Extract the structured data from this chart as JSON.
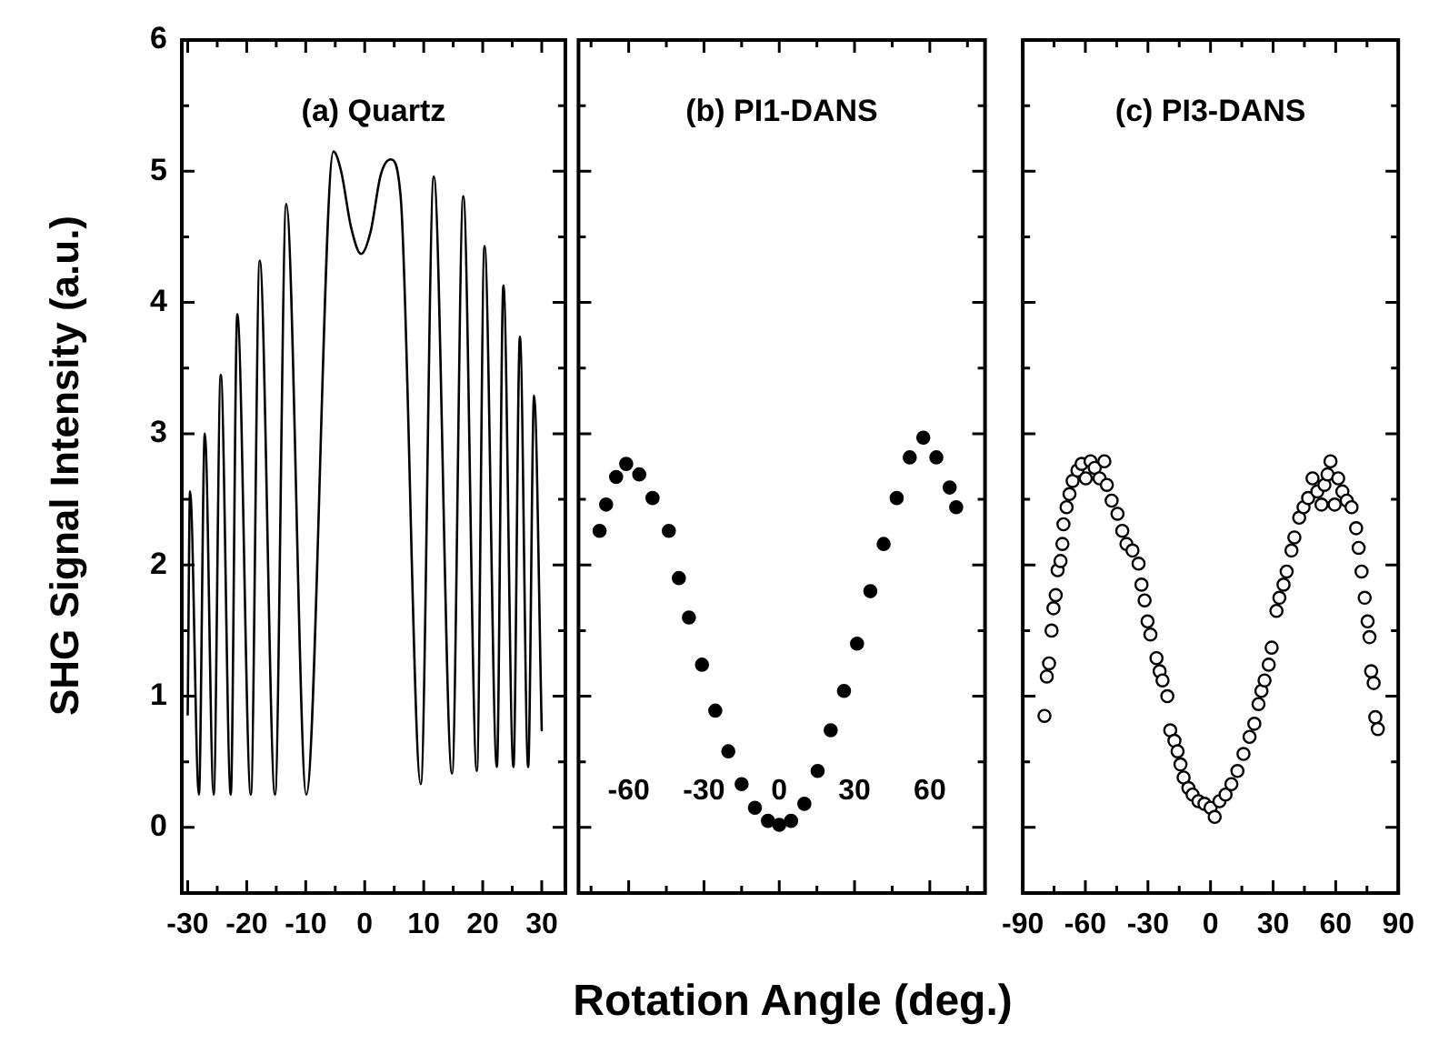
{
  "chart_data": [
    {
      "type": "line",
      "title": "(a) Quartz",
      "ylabel": "SHG Signal Intensity (a.u.)",
      "color": "#000000",
      "marker": "none",
      "x": [
        -30,
        -29.6,
        -28.1,
        -27.1,
        -25.6,
        -24.4,
        -22.7,
        -21.6,
        -19.3,
        -17.8,
        -15.2,
        -13.3,
        -9.9,
        -5.3,
        -4.0,
        -2.3,
        -0.6,
        1.0,
        2.7,
        4.4,
        6.1,
        9.5,
        11.7,
        14.8,
        16.7,
        19.0,
        20.3,
        22.4,
        23.5,
        25.2,
        26.3,
        27.7,
        28.7,
        30.0
      ],
      "values": [
        0.86,
        2.56,
        0.25,
        3.0,
        0.25,
        3.45,
        0.25,
        3.91,
        0.25,
        4.32,
        0.25,
        4.75,
        0.25,
        5.15,
        5.0,
        4.57,
        4.37,
        4.54,
        4.97,
        5.09,
        4.8,
        0.33,
        4.96,
        0.41,
        4.81,
        0.43,
        4.43,
        0.46,
        4.13,
        0.46,
        3.74,
        0.46,
        3.29,
        0.74
      ],
      "xlim": [
        -31,
        34
      ],
      "ylim": [
        -0.5,
        6
      ],
      "xticks": [
        -30,
        {
          "value": -25,
          "label": null
        },
        -20,
        {
          "value": -15,
          "label": null
        },
        -10,
        {
          "value": -5,
          "label": null
        },
        0,
        {
          "value": 5,
          "label": null
        },
        10,
        {
          "value": 15,
          "label": null
        },
        20,
        {
          "value": 25,
          "label": null
        },
        30
      ],
      "yticks": [
        0,
        {
          "value": 0.5,
          "label": null
        },
        1,
        {
          "value": 1.5,
          "label": null
        },
        2,
        {
          "value": 2.5,
          "label": null
        },
        3,
        {
          "value": 3.5,
          "label": null
        },
        4,
        {
          "value": 4.5,
          "label": null
        },
        5,
        {
          "value": 5.5,
          "label": null
        },
        6
      ]
    },
    {
      "type": "scatter",
      "title": "(b) PI1-DANS",
      "xlabel": "Rotation Angle (deg.)",
      "color": "#000000",
      "marker": "circle",
      "tick_labels": "x",
      "x": [
        -71.6,
        -69,
        -65,
        -61,
        -55.8,
        -50.5,
        -44,
        -40,
        -36,
        -30.8,
        -25.5,
        -20.3,
        -15,
        -9.7,
        -4.5,
        0,
        4.7,
        10,
        15.3,
        20.5,
        25.8,
        31,
        36.3,
        41.6,
        46.8,
        52,
        57.4,
        62.6,
        67.9,
        70.5
      ],
      "values": [
        2.26,
        2.46,
        2.67,
        2.77,
        2.69,
        2.51,
        2.26,
        1.9,
        1.6,
        1.24,
        0.89,
        0.58,
        0.33,
        0.15,
        0.05,
        0.02,
        0.05,
        0.18,
        0.43,
        0.74,
        1.04,
        1.4,
        1.8,
        2.16,
        2.51,
        2.82,
        2.97,
        2.82,
        2.59,
        2.44
      ],
      "xlim": [
        -80,
        82
      ],
      "ylim": [
        -0.5,
        6
      ],
      "xticks": [
        {
          "value": -75,
          "label": null
        },
        -60,
        {
          "value": -45,
          "label": null
        },
        -30,
        {
          "value": -15,
          "label": null
        },
        0,
        {
          "value": 15,
          "label": null
        },
        30,
        {
          "value": 45,
          "label": null
        },
        60,
        {
          "value": 75,
          "label": null
        }
      ],
      "yticks": [
        0,
        {
          "value": 0.5,
          "label": null
        },
        1,
        {
          "value": 1.5,
          "label": null
        },
        2,
        {
          "value": 2.5,
          "label": null
        },
        3,
        {
          "value": 3.5,
          "label": null
        },
        4,
        {
          "value": 4.5,
          "label": null
        },
        5,
        {
          "value": 5.5,
          "label": null
        },
        6
      ]
    },
    {
      "type": "scatter",
      "title": "(c) PI3-DANS",
      "color": "#000000",
      "marker": "circle",
      "tick_labels": "x",
      "x": [
        -79.6,
        -78.5,
        -77.4,
        -76.2,
        -75.3,
        -74.2,
        -73.3,
        -71.9,
        -71,
        -70.5,
        -69,
        -67.6,
        -66.1,
        -63.8,
        -61.8,
        -59.8,
        -57.5,
        -55.5,
        -53.2,
        -50.9,
        -49.7,
        -47.4,
        -44.6,
        -42.3,
        -40.3,
        -37.4,
        -34.5,
        -33.1,
        -31.6,
        -30.2,
        -28.8,
        -25.9,
        -24.4,
        -23,
        -20.7,
        -19.3,
        -17.3,
        -15.8,
        -14.4,
        -12.9,
        -10.6,
        -8.6,
        -5.8,
        -2.9,
        0,
        2,
        4.3,
        7.2,
        10,
        12.9,
        15.8,
        18.7,
        21,
        23,
        24.4,
        25.9,
        27.9,
        29.3,
        31.6,
        33,
        35,
        36.5,
        38.8,
        40.2,
        42.5,
        44.6,
        46.8,
        48.9,
        51.2,
        53.2,
        54.6,
        56.1,
        57.5,
        59.5,
        61.2,
        63.2,
        65.3,
        67.6,
        69.8,
        71,
        72.4,
        73.9,
        75.3,
        76.2,
        77,
        78.2,
        79,
        80.2
      ],
      "values": [
        0.85,
        1.15,
        1.25,
        1.5,
        1.67,
        1.77,
        1.96,
        2.03,
        2.16,
        2.31,
        2.44,
        2.54,
        2.64,
        2.72,
        2.77,
        2.66,
        2.79,
        2.74,
        2.66,
        2.79,
        2.61,
        2.49,
        2.39,
        2.26,
        2.16,
        2.11,
        2.01,
        1.85,
        1.73,
        1.57,
        1.47,
        1.29,
        1.19,
        1.12,
        1.0,
        0.74,
        0.66,
        0.58,
        0.48,
        0.38,
        0.3,
        0.25,
        0.2,
        0.18,
        0.15,
        0.08,
        0.2,
        0.25,
        0.33,
        0.43,
        0.56,
        0.69,
        0.79,
        0.94,
        1.04,
        1.12,
        1.24,
        1.37,
        1.65,
        1.75,
        1.85,
        1.95,
        2.11,
        2.21,
        2.36,
        2.44,
        2.51,
        2.66,
        2.56,
        2.46,
        2.61,
        2.69,
        2.79,
        2.46,
        2.66,
        2.56,
        2.49,
        2.44,
        2.28,
        2.13,
        1.95,
        1.75,
        1.57,
        1.45,
        1.19,
        1.1,
        0.84,
        0.75
      ],
      "xlim": [
        -90,
        90
      ],
      "ylim": [
        -0.5,
        6
      ],
      "xticks": [
        -90,
        {
          "value": -75,
          "label": null
        },
        -60,
        {
          "value": -45,
          "label": null
        },
        -30,
        {
          "value": -15,
          "label": null
        },
        0,
        {
          "value": 15,
          "label": null
        },
        30,
        {
          "value": 45,
          "label": null
        },
        60,
        {
          "value": 75,
          "label": null
        },
        90
      ],
      "yticks": [
        0,
        {
          "value": 0.5,
          "label": null
        },
        1,
        {
          "value": 1.5,
          "label": null
        },
        2,
        {
          "value": 2.5,
          "label": null
        },
        3,
        {
          "value": 3.5,
          "label": null
        },
        4,
        {
          "value": 4.5,
          "label": null
        },
        5,
        {
          "value": 5.5,
          "label": null
        },
        6
      ]
    }
  ]
}
